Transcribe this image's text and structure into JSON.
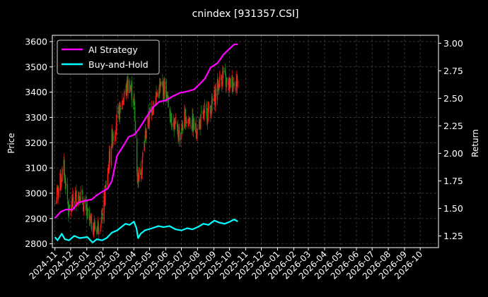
{
  "colors": {
    "background": "#000000",
    "axis": "#ffffff",
    "grid": "#555555",
    "candle_up": "#ff1a1a",
    "candle_down": "#1e8f1e",
    "ai_strategy": "#ff00ff",
    "buy_and_hold": "#00ffff"
  },
  "chart_data": {
    "type": "line",
    "title": "cnindex [931357.CSI]",
    "ylabel": "Price",
    "ylabel_right": "Return",
    "grid": true,
    "legend_position": "top-left",
    "xlim": [
      "2024-10-27",
      "2026-11-05"
    ],
    "ylim": [
      2785,
      3625
    ],
    "ylim_right": [
      1.1437,
      3.0727
    ],
    "x_tick_labels": [
      "2024-11",
      "2024-12",
      "2025-01",
      "2025-02",
      "2025-03",
      "2025-04",
      "2025-05",
      "2025-06",
      "2025-07",
      "2025-08",
      "2025-09",
      "2025-10",
      "2025-11",
      "2025-12",
      "2026-01",
      "2026-02",
      "2026-03",
      "2026-04",
      "2026-05",
      "2026-06",
      "2026-07",
      "2026-08",
      "2026-09",
      "2026-10"
    ],
    "y_ticks": [
      2800,
      2900,
      3000,
      3100,
      3200,
      3300,
      3400,
      3500,
      3600
    ],
    "y_ticks_right": [
      "1.25",
      "1.50",
      "1.75",
      "2.00",
      "2.25",
      "2.50",
      "2.75",
      "3.00"
    ],
    "price_series": {
      "type": "candlestick",
      "anchors": [
        [
          "2024-11-01",
          2960
        ],
        [
          "2024-11-10",
          3040
        ],
        [
          "2024-11-18",
          3100
        ],
        [
          "2024-11-28",
          2920
        ],
        [
          "2024-12-08",
          2980
        ],
        [
          "2024-12-18",
          3000
        ],
        [
          "2025-01-06",
          2890
        ],
        [
          "2025-01-18",
          2860
        ],
        [
          "2025-01-30",
          2900
        ],
        [
          "2025-02-08",
          3050
        ],
        [
          "2025-02-18",
          3220
        ],
        [
          "2025-03-01",
          3300
        ],
        [
          "2025-03-12",
          3380
        ],
        [
          "2025-03-22",
          3440
        ],
        [
          "2025-04-01",
          3370
        ],
        [
          "2025-04-08",
          3060
        ],
        [
          "2025-04-15",
          3100
        ],
        [
          "2025-04-25",
          3260
        ],
        [
          "2025-05-08",
          3360
        ],
        [
          "2025-05-20",
          3410
        ],
        [
          "2025-05-30",
          3420
        ],
        [
          "2025-06-08",
          3330
        ],
        [
          "2025-06-18",
          3260
        ],
        [
          "2025-06-28",
          3230
        ],
        [
          "2025-07-08",
          3300
        ],
        [
          "2025-07-18",
          3290
        ],
        [
          "2025-07-28",
          3250
        ],
        [
          "2025-08-08",
          3290
        ],
        [
          "2025-08-18",
          3320
        ],
        [
          "2025-08-28",
          3340
        ],
        [
          "2025-09-08",
          3420
        ],
        [
          "2025-09-18",
          3470
        ],
        [
          "2025-09-28",
          3420
        ],
        [
          "2025-10-08",
          3450
        ],
        [
          "2025-10-17",
          3440
        ]
      ]
    },
    "series": [
      {
        "name": "AI Strategy",
        "points": [
          [
            "2024-11-01",
            1.41
          ],
          [
            "2024-11-12",
            1.47
          ],
          [
            "2024-11-22",
            1.49
          ],
          [
            "2024-12-05",
            1.49
          ],
          [
            "2024-12-15",
            1.55
          ],
          [
            "2024-12-28",
            1.57
          ],
          [
            "2025-01-10",
            1.58
          ],
          [
            "2025-01-20",
            1.62
          ],
          [
            "2025-01-30",
            1.65
          ],
          [
            "2025-02-10",
            1.68
          ],
          [
            "2025-02-18",
            1.75
          ],
          [
            "2025-02-28",
            1.98
          ],
          [
            "2025-03-12",
            2.07
          ],
          [
            "2025-03-22",
            2.15
          ],
          [
            "2025-04-02",
            2.17
          ],
          [
            "2025-04-12",
            2.23
          ],
          [
            "2025-04-25",
            2.33
          ],
          [
            "2025-05-08",
            2.42
          ],
          [
            "2025-05-20",
            2.47
          ],
          [
            "2025-06-01",
            2.48
          ],
          [
            "2025-06-15",
            2.52
          ],
          [
            "2025-06-28",
            2.55
          ],
          [
            "2025-07-10",
            2.56
          ],
          [
            "2025-07-25",
            2.58
          ],
          [
            "2025-08-05",
            2.63
          ],
          [
            "2025-08-15",
            2.68
          ],
          [
            "2025-08-26",
            2.78
          ],
          [
            "2025-09-08",
            2.82
          ],
          [
            "2025-09-20",
            2.9
          ],
          [
            "2025-10-01",
            2.95
          ],
          [
            "2025-10-10",
            2.99
          ],
          [
            "2025-10-17",
            2.99
          ]
        ]
      },
      {
        "name": "Buy-and-Hold",
        "points": [
          [
            "2024-11-01",
            1.24
          ],
          [
            "2024-11-06",
            1.21
          ],
          [
            "2024-11-14",
            1.27
          ],
          [
            "2024-11-20",
            1.22
          ],
          [
            "2024-11-28",
            1.21
          ],
          [
            "2024-12-08",
            1.25
          ],
          [
            "2024-12-18",
            1.23
          ],
          [
            "2025-01-02",
            1.24
          ],
          [
            "2025-01-12",
            1.19
          ],
          [
            "2025-01-20",
            1.22
          ],
          [
            "2025-01-30",
            1.21
          ],
          [
            "2025-02-08",
            1.23
          ],
          [
            "2025-02-18",
            1.28
          ],
          [
            "2025-02-28",
            1.3
          ],
          [
            "2025-03-08",
            1.33
          ],
          [
            "2025-03-16",
            1.36
          ],
          [
            "2025-03-24",
            1.35
          ],
          [
            "2025-04-01",
            1.38
          ],
          [
            "2025-04-06",
            1.32
          ],
          [
            "2025-04-09",
            1.23
          ],
          [
            "2025-04-14",
            1.27
          ],
          [
            "2025-04-22",
            1.3
          ],
          [
            "2025-05-06",
            1.32
          ],
          [
            "2025-05-18",
            1.34
          ],
          [
            "2025-05-28",
            1.33
          ],
          [
            "2025-06-08",
            1.34
          ],
          [
            "2025-06-20",
            1.31
          ],
          [
            "2025-07-01",
            1.3
          ],
          [
            "2025-07-12",
            1.32
          ],
          [
            "2025-07-22",
            1.31
          ],
          [
            "2025-08-01",
            1.33
          ],
          [
            "2025-08-12",
            1.36
          ],
          [
            "2025-08-22",
            1.35
          ],
          [
            "2025-09-02",
            1.39
          ],
          [
            "2025-09-12",
            1.37
          ],
          [
            "2025-09-22",
            1.36
          ],
          [
            "2025-10-02",
            1.38
          ],
          [
            "2025-10-10",
            1.4
          ],
          [
            "2025-10-17",
            1.38
          ]
        ]
      }
    ]
  }
}
